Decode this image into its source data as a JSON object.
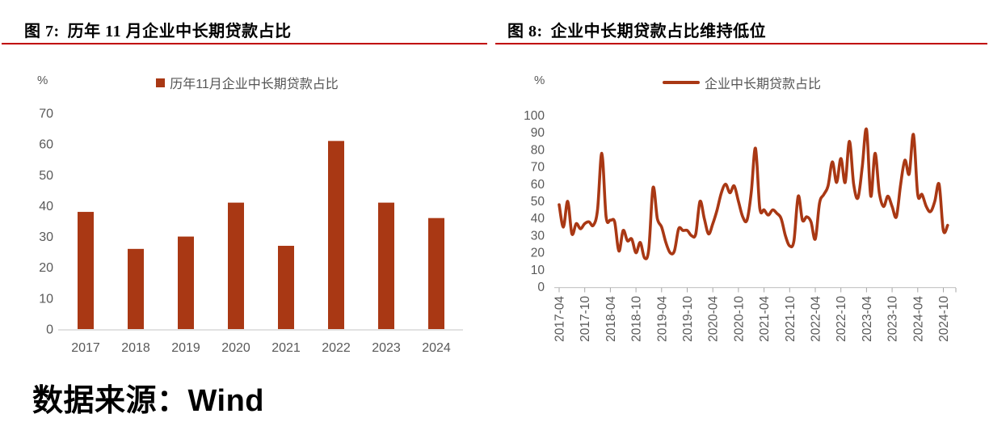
{
  "figures": [
    {
      "num": "图 7:",
      "title": "历年 11 月企业中长期贷款占比"
    },
    {
      "num": "图 8:",
      "title": "企业中长期贷款占比维持低位"
    }
  ],
  "source_note": "数据来源：Wind",
  "colors": {
    "accent": "#A93814",
    "title_rule": "#C00000",
    "axis_text": "#595959",
    "baseline_left": "#D9D9D9",
    "axis_line_right": "#C9C9C9",
    "axis_tick": "#A6A6A6"
  },
  "chart_data": [
    {
      "type": "bar",
      "unit": "%",
      "legend": "历年11月企业中长期贷款占比",
      "legend_position": "top",
      "grid": false,
      "categories": [
        "2017",
        "2018",
        "2019",
        "2020",
        "2021",
        "2022",
        "2023",
        "2024"
      ],
      "values": [
        38,
        26,
        30,
        41,
        27,
        61,
        41,
        36
      ],
      "ylim": [
        0,
        70
      ],
      "yticks": [
        0,
        10,
        20,
        30,
        40,
        50,
        60,
        70
      ]
    },
    {
      "type": "line",
      "unit": "%",
      "legend": "企业中长期贷款占比",
      "legend_position": "top",
      "grid": false,
      "x_start": "2017-04",
      "x_end": "2024-11",
      "points_per_month": 1,
      "ticks_every_n_points": 6,
      "x_tick_labels": [
        "2017-04",
        "2017-10",
        "2018-04",
        "2018-10",
        "2019-04",
        "2019-10",
        "2020-04",
        "2020-10",
        "2021-04",
        "2021-10",
        "2022-04",
        "2022-10",
        "2023-04",
        "2023-10",
        "2024-04",
        "2024-10"
      ],
      "values": [
        48,
        35,
        50,
        31,
        37,
        34,
        37,
        38,
        36,
        45,
        78,
        41,
        39,
        38,
        21,
        33,
        27,
        28,
        20,
        26,
        17,
        22,
        58,
        40,
        35,
        26,
        20,
        21,
        34,
        33,
        33,
        30,
        31,
        50,
        40,
        31,
        37,
        45,
        55,
        60,
        55,
        59,
        50,
        41,
        39,
        55,
        81,
        46,
        45,
        42,
        45,
        43,
        40,
        30,
        24,
        27,
        53,
        39,
        41,
        38,
        28,
        49,
        54,
        59,
        73,
        61,
        75,
        61,
        85,
        60,
        52,
        70,
        92,
        53,
        78,
        55,
        47,
        53,
        47,
        41,
        60,
        74,
        66,
        89,
        54,
        54,
        47,
        44,
        50,
        60,
        33,
        36
      ],
      "ylim": [
        0,
        100
      ],
      "yticks": [
        0,
        10,
        20,
        30,
        40,
        50,
        60,
        70,
        80,
        90,
        100
      ]
    }
  ]
}
